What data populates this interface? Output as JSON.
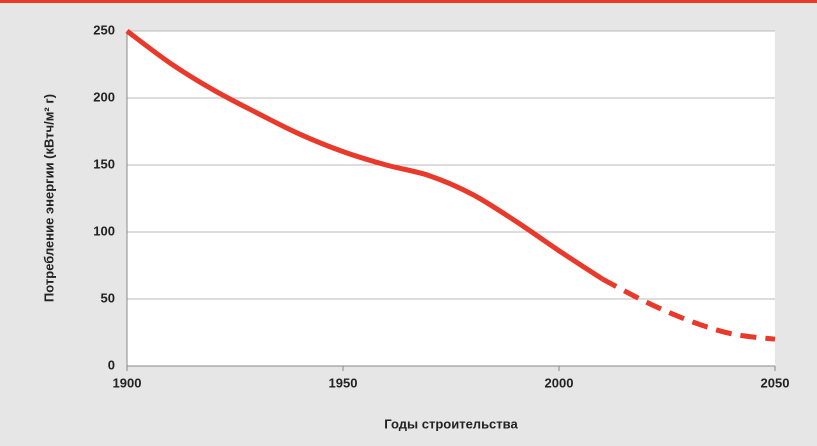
{
  "chart_data": {
    "type": "line",
    "xlabel": "Годы строительства",
    "ylabel": "Потребление энергии (кВтч/м² г)",
    "x": [
      1900,
      1910,
      1920,
      1930,
      1940,
      1950,
      1960,
      1970,
      1980,
      1990,
      2000,
      2010,
      2020,
      2030,
      2040,
      2050
    ],
    "series": [
      {
        "color": "#e8392b",
        "style": "solid",
        "values": [
          250,
          226,
          206,
          189,
          173,
          160,
          150,
          142,
          128,
          108,
          86,
          65,
          null,
          null,
          null,
          null
        ]
      },
      {
        "color": "#e8392b",
        "style": "dashed",
        "values": [
          null,
          null,
          null,
          null,
          null,
          null,
          null,
          null,
          null,
          null,
          null,
          65,
          48,
          34,
          24,
          20
        ]
      }
    ],
    "xlim": [
      1900,
      2050
    ],
    "xticks": [
      1900,
      1950,
      2000,
      2050
    ],
    "ylim": [
      0,
      250
    ],
    "yticks": [
      0,
      50,
      100,
      150,
      200,
      250
    ],
    "grid": true
  }
}
